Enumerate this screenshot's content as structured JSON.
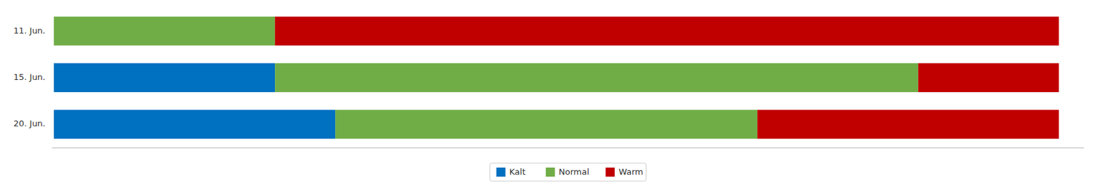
{
  "chart_data": {
    "type": "bar",
    "orientation": "horizontal",
    "stacked": true,
    "categories": [
      "11. Jun.",
      "15. Jun.",
      "20. Jun."
    ],
    "series": [
      {
        "name": "Kalt",
        "color": "#0070C0",
        "values": [
          0,
          22,
          28
        ]
      },
      {
        "name": "Normal",
        "color": "#70AD47",
        "values": [
          22,
          64,
          42
        ]
      },
      {
        "name": "Warm",
        "color": "#C00000",
        "values": [
          78,
          14,
          30
        ]
      }
    ],
    "xlim": [
      -0.2,
      102.5
    ],
    "tick_labels": "y",
    "grid": false,
    "legend": "bottom"
  }
}
